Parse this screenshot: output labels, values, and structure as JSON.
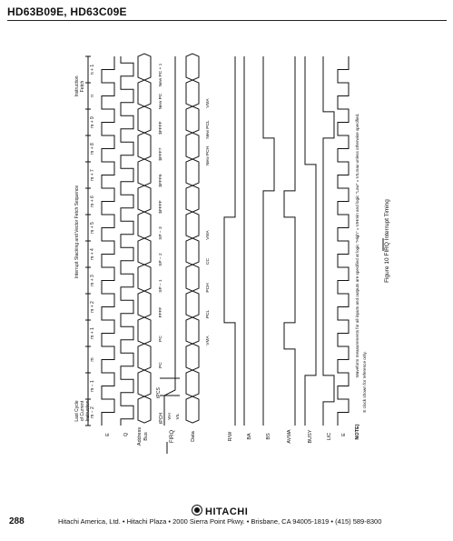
{
  "header": {
    "title": "HD63B09E, HD63C09E"
  },
  "top_labels": {
    "last_cycle": [
      "Last Cycle",
      "of Current",
      "Instruction"
    ],
    "sequence": "Interrupt Stacking and Vector Fetch Sequence",
    "fetch": [
      "Instruction",
      "Fetch"
    ],
    "cycles": [
      "m − 2",
      "m − 1",
      "m",
      "m + 1",
      "m + 2",
      "m + 3",
      "m + 4",
      "m + 5",
      "m + 6",
      "m + 7",
      "m + 8",
      "m + 9",
      "n",
      "n + 1"
    ]
  },
  "signals": {
    "e": "E",
    "q": "Q",
    "address_bus": [
      "Address",
      "Bus"
    ],
    "firq": "FIRQ",
    "data": "Data",
    "rw": "R/W",
    "ba": "BA",
    "bs": "BS",
    "avma": "AVMA",
    "busy": "BUSY",
    "lic": "LIC",
    "e2": "E"
  },
  "timing": {
    "tpcs": "tPCS",
    "tpch": "tPCH",
    "vih": "VIH",
    "vil": "VIL"
  },
  "address_values": [
    "PC",
    "PC",
    "FFFF",
    "SP − 1",
    "SP − 2",
    "SP − 3",
    "$FFFF",
    "$FFF6",
    "$FFF7",
    "$FFFF",
    "New PC",
    "New PC + 1"
  ],
  "data_values": [
    "VMA",
    "PCL",
    "PCH",
    "CC",
    "VMA",
    "New PCH",
    "New PCL",
    "VMA"
  ],
  "note": {
    "label": "NOTE)",
    "line1": "Waveform measurements for all inputs and outputs are specified at logic \"High\" = VIHmin and logic \"Low\" = VILmax unless otherwise specified.",
    "line2": "E clock shown for reference only."
  },
  "figure_caption": "Figure 10  FIRQ Interrupt Timing",
  "footer": {
    "logo": "HITACHI",
    "page": "288",
    "address": "Hitachi America, Ltd. • Hitachi Plaza • 2000 Sierra Point Pkwy. • Brisbane, CA 94005-1819 • (415) 589-8300"
  }
}
